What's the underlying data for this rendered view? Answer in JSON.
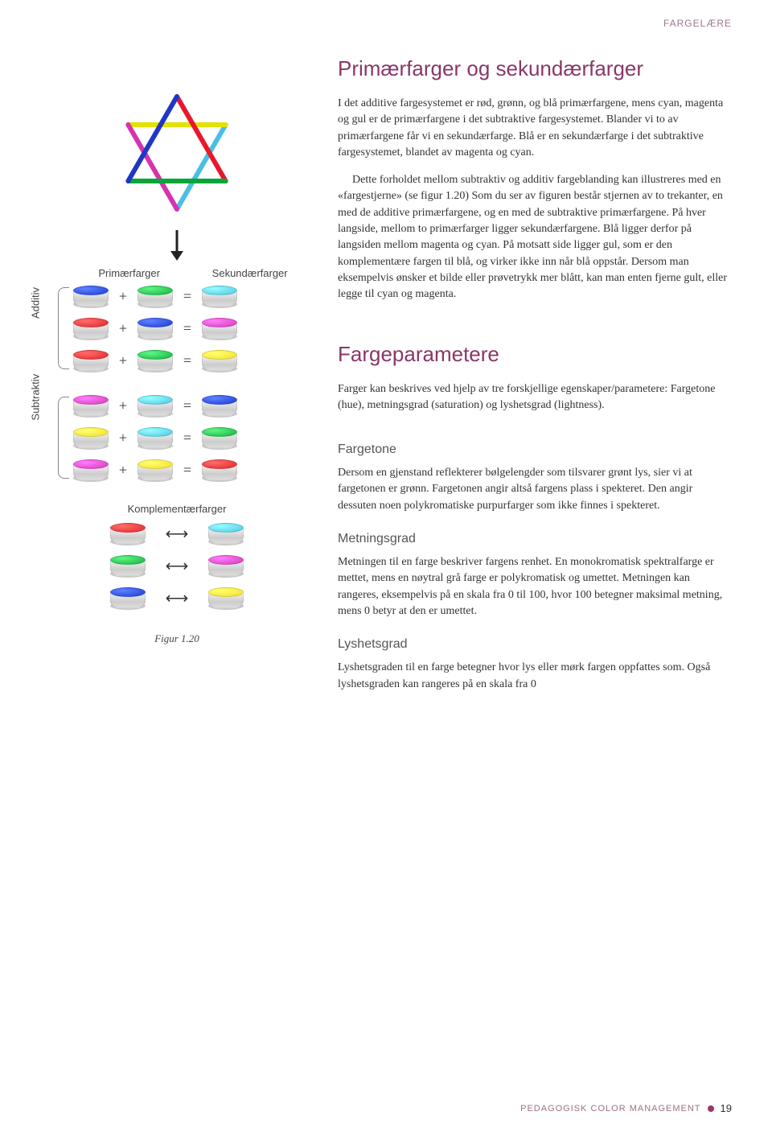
{
  "header_label": "FARGELÆRE",
  "section1": {
    "title": "Primærfarger og sekundærfarger",
    "para1": "I det additive fargesystemet er rød, grønn, og blå primærfargene, mens cyan, magenta og gul er de primærfargene i det subtraktive fargesystemet. Blander vi to av primærfargene får vi en sekundærfarge. Blå er en sekundærfarge i det subtraktive fargesystemet, blandet av magenta og cyan.",
    "para2": "Dette forholdet mellom subtraktiv og additiv fargeblanding kan illustreres med en «fargestjerne» (se figur 1.20) Som du ser av figuren består stjernen av to trekanter, en med de additive primærfargene, og en med de subtraktive primærfargene. På hver langside, mellom to primærfarger ligger sekundærfargene. Blå ligger derfor på langsiden mellom magenta og cyan. På motsatt side ligger gul, som er den komplementære fargen til blå, og virker ikke inn når blå oppstår. Dersom man eksempelvis ønsker et bilde eller prøvetrykk mer blått, kan man enten fjerne gult, eller legge til cyan og magenta."
  },
  "section2": {
    "title": "Fargeparametere",
    "para1": "Farger kan beskrives ved hjelp av tre forskjellige egenskaper/parametere: Fargetone (hue), metningsgrad (saturation) og lyshetsgrad (lightness)."
  },
  "sub_fargetone": {
    "title": "Fargetone",
    "para": "Dersom en gjenstand reflekterer bølgelengder som tilsvarer grønt lys, sier vi at fargetonen er grønn. Fargetonen angir altså fargens plass i spekteret. Den angir dessuten noen polykromatiske purpurfarger som ikke finnes i spekteret."
  },
  "sub_metning": {
    "title": "Metningsgrad",
    "para": "Metningen til en farge beskriver fargens renhet. En monokromatisk spektralfarge er mettet, mens en nøytral grå farge er polykromatisk og umettet. Metningen kan rangeres, eksempelvis på en skala fra 0 til 100, hvor 100 betegner maksimal metning, mens 0 betyr at den er umettet."
  },
  "sub_lyshet": {
    "title": "Lyshetsgrad",
    "para": "Lyshetsgraden til en farge betegner hvor lys eller mørk fargen oppfattes som. Også lyshetsgraden kan rangeres på en skala fra 0"
  },
  "diagram": {
    "primary_label": "Primærfarger",
    "secondary_label": "Sekundærfarger",
    "additive_label": "Additiv",
    "subtractive_label": "Subtraktiv",
    "complementary_label": "Komplementærfarger",
    "figure_caption": "Figur 1.20",
    "star": {
      "triangle_up_colors": [
        "#e8172c",
        "#2037c4",
        "#0aa53a"
      ],
      "triangle_down_colors": [
        "#e4e100",
        "#49bfe3",
        "#d633b0"
      ],
      "stroke_width": 6
    },
    "additive_rows": [
      {
        "a": "#1a3cd6",
        "b": "#18b03e",
        "r": "#4fc4e6"
      },
      {
        "a": "#e22727",
        "b": "#1a3cd6",
        "r": "#d838b8"
      },
      {
        "a": "#e22727",
        "b": "#18b03e",
        "r": "#f2e02a"
      }
    ],
    "subtractive_rows": [
      {
        "a": "#d838b8",
        "b": "#4fc4e6",
        "r": "#1a3cd6"
      },
      {
        "a": "#f2e02a",
        "b": "#4fc4e6",
        "r": "#18b03e"
      },
      {
        "a": "#d838b8",
        "b": "#f2e02a",
        "r": "#e22727"
      }
    ],
    "complementary_rows": [
      {
        "a": "#e22727",
        "b": "#4fc4e6"
      },
      {
        "a": "#18b03e",
        "b": "#d838b8"
      },
      {
        "a": "#1a3cd6",
        "b": "#f2e02a"
      }
    ]
  },
  "footer": {
    "text": "PEDAGOGISK COLOR MANAGEMENT",
    "page": "19"
  }
}
